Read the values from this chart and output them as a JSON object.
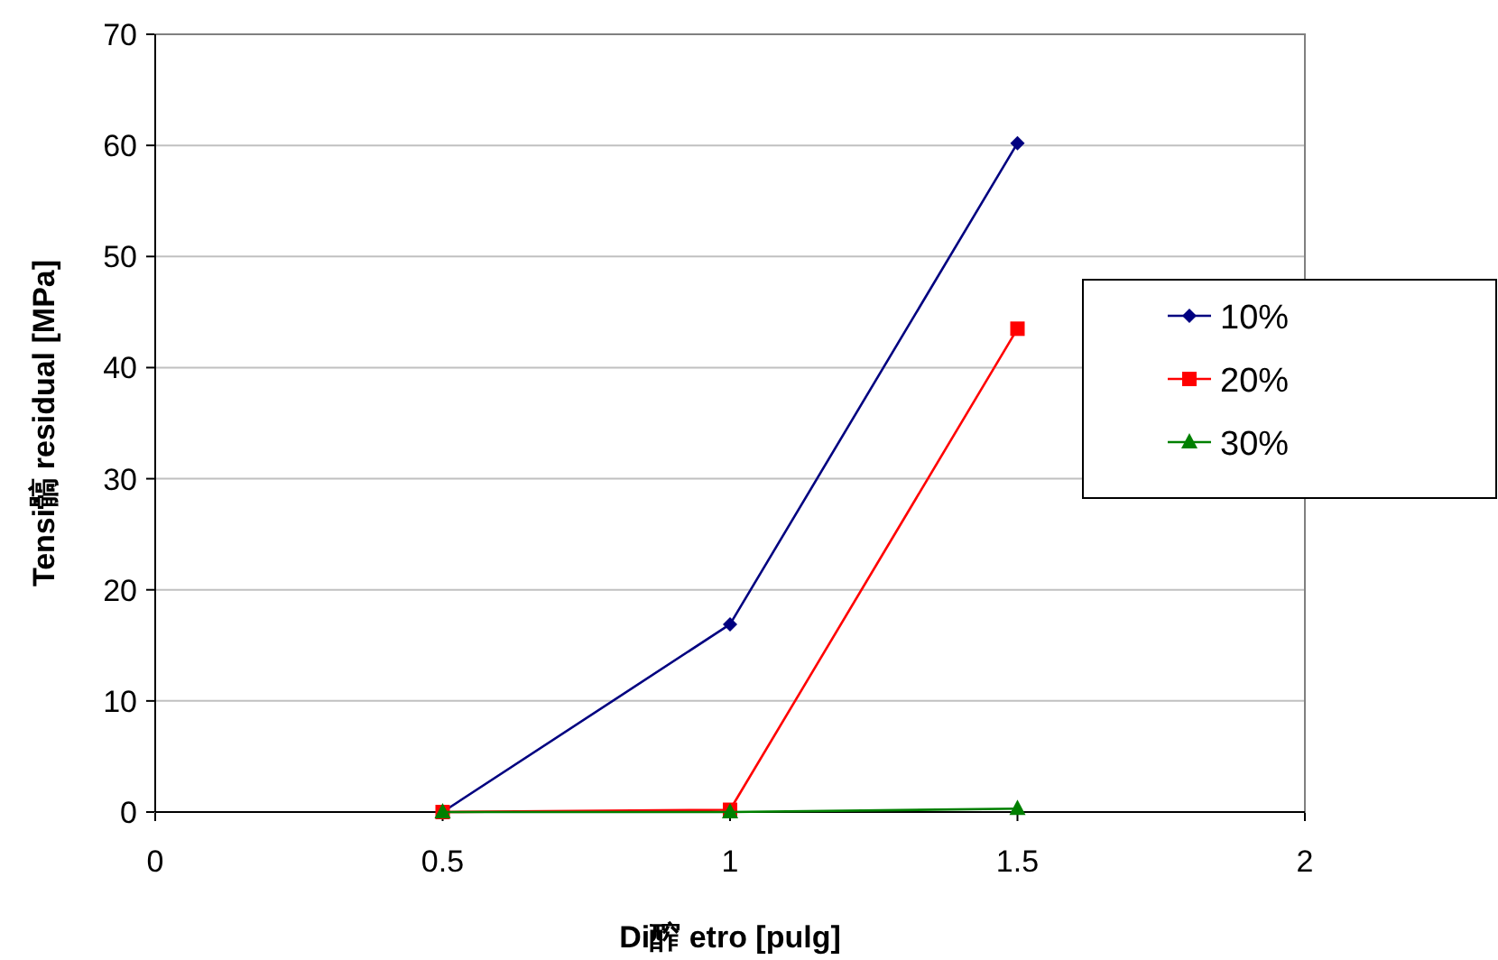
{
  "chart_data": {
    "type": "line",
    "xlabel": "Di醡 etro [pulg]",
    "ylabel": "Tensi髇 residual [MPa]",
    "xlim": [
      0,
      2
    ],
    "xticks": [
      0,
      0.5,
      1,
      1.5,
      2
    ],
    "ylim": [
      0,
      70
    ],
    "yticks": [
      0,
      10,
      20,
      30,
      40,
      50,
      60,
      70
    ],
    "grid": "y",
    "legend": "right",
    "series": [
      {
        "name": "10%",
        "color": "#000080",
        "marker": "diamond",
        "x": [
          0.5,
          1,
          1.5
        ],
        "values": [
          0,
          16.9,
          60.2
        ]
      },
      {
        "name": "20%",
        "color": "#ff0000",
        "marker": "square",
        "x": [
          0.5,
          1,
          1.5
        ],
        "values": [
          0,
          0.2,
          43.5
        ]
      },
      {
        "name": "30%",
        "color": "#008000",
        "marker": "triangle",
        "x": [
          0.5,
          1,
          1.5
        ],
        "values": [
          0,
          0,
          0.3
        ]
      }
    ]
  }
}
